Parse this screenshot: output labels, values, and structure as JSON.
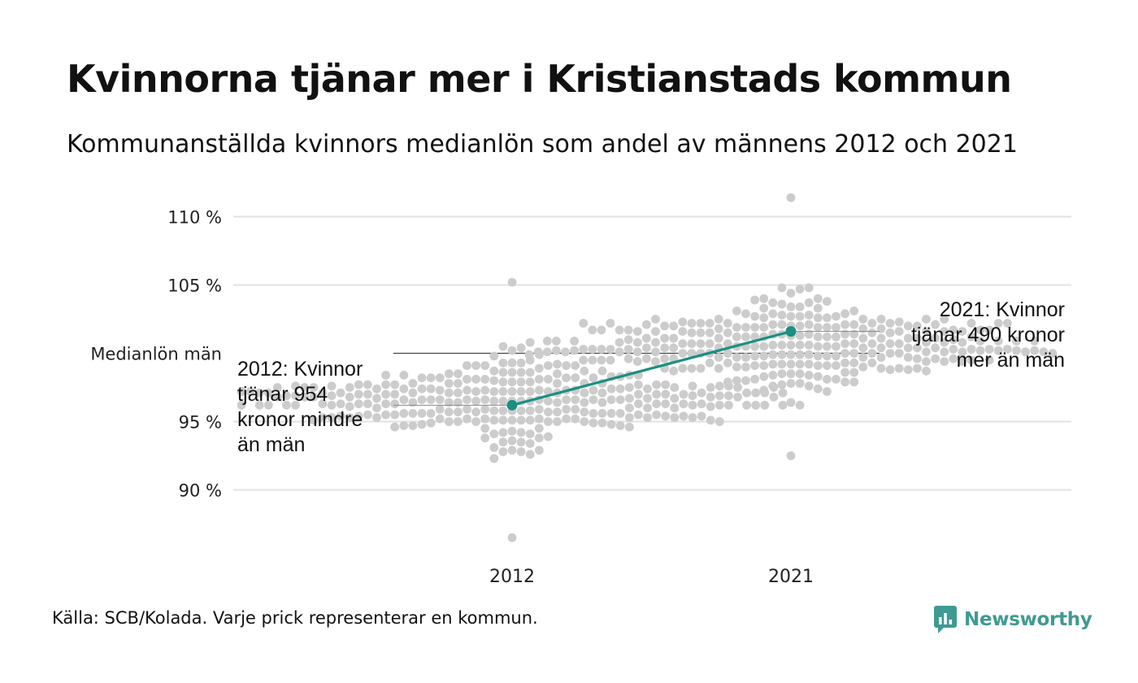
{
  "title": "Kvinnorna tjänar mer i Kristianstads kommun",
  "subtitle": "Kommunanställda kvinnors medianlön som andel av männens 2012 och 2021",
  "source": "Källa: SCB/Kolada. Varje prick representerar en kommun.",
  "brand": "Newsworthy",
  "colors": {
    "dots": "#cccccc",
    "highlight": "#1a9081",
    "grid": "#e2e2e2",
    "reference": "#444444",
    "brand": "#3f9a92"
  },
  "chart_data": {
    "type": "scatter",
    "subtype": "beeswarm",
    "categories": [
      "2012",
      "2021"
    ],
    "ylim": [
      86,
      111.5
    ],
    "yticks": [
      {
        "value": 90,
        "label": "90 %"
      },
      {
        "value": 95,
        "label": "95 %"
      },
      {
        "value": 100,
        "label": "Medianlön män"
      },
      {
        "value": 105,
        "label": "105 %"
      },
      {
        "value": 110,
        "label": "110 %"
      }
    ],
    "grid": true,
    "reference_line": 100,
    "highlight": {
      "values": [
        96.2,
        101.6
      ],
      "annotations": [
        {
          "category": "2012",
          "lines": [
            "2012: Kvinnor",
            "tjänar 954",
            "kronor mindre",
            "än män"
          ]
        },
        {
          "category": "2021",
          "lines": [
            "2021: Kvinnor",
            "tjänar 490 kronor",
            "mer än män"
          ]
        }
      ]
    },
    "distribution": [
      {
        "category": "2012",
        "median": 96.5,
        "min": 86.5,
        "max": 105.2,
        "spread": 1.5,
        "count": 290
      },
      {
        "category": "2021",
        "median": 100.6,
        "min": 92.5,
        "max": 111.4,
        "spread": 1.5,
        "count": 290
      }
    ]
  }
}
